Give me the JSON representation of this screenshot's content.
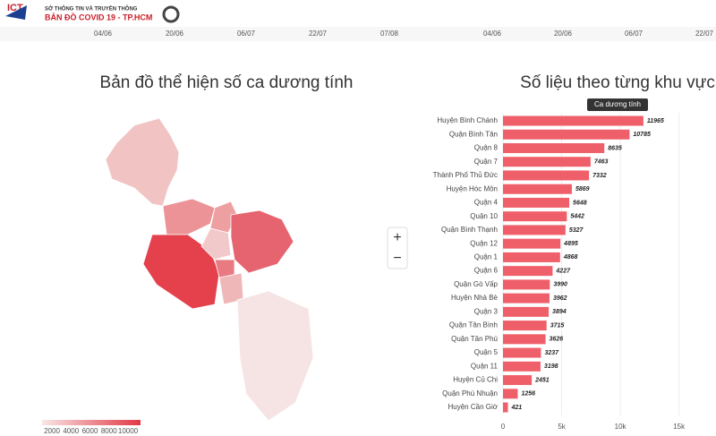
{
  "header": {
    "logo": "ICT",
    "org": "SỞ THÔNG TIN VÀ TRUYỀN THÔNG",
    "title": "BẢN ĐỒ  COVID 19 - TP.HCM"
  },
  "timeline": {
    "left_dates": [
      "04/06",
      "20/06",
      "06/07",
      "22/07",
      "07/08"
    ],
    "right_dates": [
      "04/06",
      "20/06",
      "06/07",
      "22/07"
    ]
  },
  "map": {
    "title": "Bản đồ thể hiện số ca dương tính",
    "zoom_in": "+",
    "zoom_out": "−",
    "legend_ticks": [
      2000,
      4000,
      6000,
      8000,
      10000
    ]
  },
  "chart_data": {
    "type": "barh",
    "title": "Số liệu theo từng khu vực",
    "categories": [
      "Huyện Bình Chánh",
      "Quận Bình Tân",
      "Quận 8",
      "Quận 7",
      "Thành Phố Thủ Đức",
      "Huyện Hóc Môn",
      "Quận 4",
      "Quận 10",
      "Quận Bình Thạnh",
      "Quận 12",
      "Quận 1",
      "Quận 6",
      "Quận Gò Vấp",
      "Huyện Nhà Bè",
      "Quận 3",
      "Quận Tân Bình",
      "Quận Tân Phú",
      "Quận 5",
      "Quận 11",
      "Huyện Củ Chi",
      "Quận Phú Nhuận",
      "Huyện Cần Giờ"
    ],
    "series": [
      {
        "name": "Ca dương tính",
        "color": "#ef5f69",
        "values": [
          11965,
          10785,
          8635,
          7463,
          7332,
          5869,
          5648,
          5442,
          5327,
          4895,
          4868,
          4227,
          3990,
          3962,
          3894,
          3715,
          3626,
          3237,
          3198,
          2451,
          1256,
          421
        ]
      }
    ],
    "xlim": [
      0,
      18000
    ],
    "xticks": [
      0,
      {
        "value": 5000,
        "label": "5k"
      },
      {
        "value": 10000,
        "label": "10k"
      },
      {
        "value": 15000,
        "label": "15k"
      }
    ]
  }
}
